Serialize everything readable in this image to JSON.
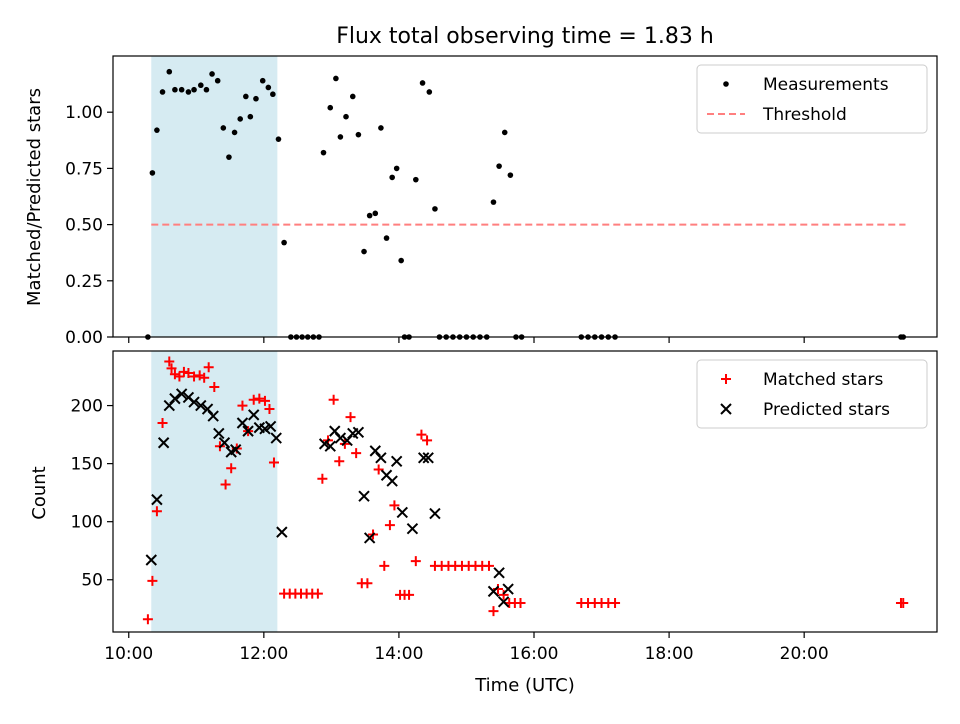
{
  "chart_data": [
    {
      "type": "scatter",
      "title": "Flux total observing time = 1.83 h",
      "xlabel": "",
      "ylabel": "Matched/Predicted stars",
      "xlim": [
        "09:46",
        "21:58"
      ],
      "ylim": [
        0,
        1.25
      ],
      "yticks": [
        "0.00",
        "0.25",
        "0.50",
        "0.75",
        "1.00"
      ],
      "legend_position": "top-right",
      "shaded_interval": [
        "10:20",
        "12:12"
      ],
      "shade_color": "#add8e6",
      "series": [
        {
          "name": "Measurements",
          "marker": "dot",
          "color": "#000000",
          "points": [
            [
              "10:17",
              0
            ],
            [
              "10:21",
              0.73
            ],
            [
              "10:25",
              0.92
            ],
            [
              "10:30",
              1.09
            ],
            [
              "10:36",
              1.18
            ],
            [
              "10:41",
              1.1
            ],
            [
              "10:47",
              1.1
            ],
            [
              "10:53",
              1.09
            ],
            [
              "10:58",
              1.1
            ],
            [
              "11:04",
              1.12
            ],
            [
              "11:09",
              1.1
            ],
            [
              "11:14",
              1.17
            ],
            [
              "11:19",
              1.14
            ],
            [
              "11:24",
              0.93
            ],
            [
              "11:29",
              0.8
            ],
            [
              "11:34",
              0.91
            ],
            [
              "11:39",
              0.97
            ],
            [
              "11:44",
              1.07
            ],
            [
              "11:48",
              0.98
            ],
            [
              "11:53",
              1.06
            ],
            [
              "11:59",
              1.14
            ],
            [
              "12:04",
              1.11
            ],
            [
              "12:08",
              1.08
            ],
            [
              "12:13",
              0.88
            ],
            [
              "12:18",
              0.42
            ],
            [
              "12:24",
              0
            ],
            [
              "12:29",
              0
            ],
            [
              "12:34",
              0
            ],
            [
              "12:39",
              0
            ],
            [
              "12:44",
              0
            ],
            [
              "12:49",
              0
            ],
            [
              "12:53",
              0.82
            ],
            [
              "12:59",
              1.02
            ],
            [
              "13:04",
              1.15
            ],
            [
              "13:08",
              0.89
            ],
            [
              "13:13",
              0.98
            ],
            [
              "13:19",
              1.07
            ],
            [
              "13:24",
              0.9
            ],
            [
              "13:29",
              0.38
            ],
            [
              "13:34",
              0.54
            ],
            [
              "13:39",
              0.55
            ],
            [
              "13:44",
              0.93
            ],
            [
              "13:49",
              0.44
            ],
            [
              "13:54",
              0.71
            ],
            [
              "13:58",
              0.75
            ],
            [
              "14:02",
              0.34
            ],
            [
              "14:05",
              0
            ],
            [
              "14:09",
              0
            ],
            [
              "14:15",
              0.7
            ],
            [
              "14:21",
              1.13
            ],
            [
              "14:27",
              1.09
            ],
            [
              "14:32",
              0.57
            ],
            [
              "14:36",
              0
            ],
            [
              "14:42",
              0
            ],
            [
              "14:48",
              0
            ],
            [
              "14:54",
              0
            ],
            [
              "15:00",
              0
            ],
            [
              "15:06",
              0
            ],
            [
              "15:12",
              0
            ],
            [
              "15:18",
              0
            ],
            [
              "15:24",
              0.6
            ],
            [
              "15:29",
              0.76
            ],
            [
              "15:34",
              0.91
            ],
            [
              "15:39",
              0.72
            ],
            [
              "15:44",
              0
            ],
            [
              "15:49",
              0
            ],
            [
              "16:42",
              0
            ],
            [
              "16:48",
              0
            ],
            [
              "16:54",
              0
            ],
            [
              "17:00",
              0
            ],
            [
              "17:06",
              0
            ],
            [
              "17:12",
              0
            ],
            [
              "21:26",
              0
            ],
            [
              "21:28",
              0
            ]
          ]
        },
        {
          "name": "Threshold",
          "style": "dashed",
          "color": "#ff7f7f",
          "points": [
            [
              "10:20",
              0.5
            ],
            [
              "21:30",
              0.5
            ]
          ]
        }
      ]
    },
    {
      "type": "scatter",
      "title": "",
      "xlabel": "Time (UTC)",
      "ylabel": "Count",
      "xlim": [
        "09:46",
        "21:58"
      ],
      "ylim": [
        5,
        247
      ],
      "yticks": [
        "50",
        "100",
        "150",
        "200"
      ],
      "xticks": [
        "10:00",
        "12:00",
        "14:00",
        "16:00",
        "18:00",
        "20:00"
      ],
      "legend_position": "top-right",
      "shaded_interval": [
        "10:20",
        "12:12"
      ],
      "shade_color": "#add8e6",
      "series": [
        {
          "name": "Matched stars",
          "marker": "plus",
          "color": "#ff0000",
          "points": [
            [
              "10:17",
              16
            ],
            [
              "10:21",
              49
            ],
            [
              "10:25",
              109
            ],
            [
              "10:30",
              185
            ],
            [
              "10:36",
              238
            ],
            [
              "10:38",
              232
            ],
            [
              "10:41",
              227
            ],
            [
              "10:45",
              225
            ],
            [
              "10:49",
              229
            ],
            [
              "10:53",
              228
            ],
            [
              "10:58",
              225
            ],
            [
              "11:03",
              226
            ],
            [
              "11:07",
              224
            ],
            [
              "11:11",
              233
            ],
            [
              "11:16",
              216
            ],
            [
              "11:21",
              165
            ],
            [
              "11:26",
              132
            ],
            [
              "11:31",
              146
            ],
            [
              "11:36",
              163
            ],
            [
              "11:41",
              200
            ],
            [
              "11:46",
              178
            ],
            [
              "11:51",
              205
            ],
            [
              "11:56",
              206
            ],
            [
              "12:01",
              204
            ],
            [
              "12:05",
              197
            ],
            [
              "12:09",
              151
            ],
            [
              "12:18",
              38
            ],
            [
              "12:23",
              38
            ],
            [
              "12:28",
              38
            ],
            [
              "12:33",
              38
            ],
            [
              "12:38",
              38
            ],
            [
              "12:43",
              38
            ],
            [
              "12:48",
              38
            ],
            [
              "12:52",
              137
            ],
            [
              "12:57",
              170
            ],
            [
              "13:02",
              205
            ],
            [
              "13:07",
              152
            ],
            [
              "13:12",
              167
            ],
            [
              "13:17",
              190
            ],
            [
              "13:22",
              159
            ],
            [
              "13:27",
              47
            ],
            [
              "13:32",
              47
            ],
            [
              "13:37",
              89
            ],
            [
              "13:42",
              145
            ],
            [
              "13:47",
              62
            ],
            [
              "13:52",
              97
            ],
            [
              "13:56",
              114
            ],
            [
              "14:01",
              37
            ],
            [
              "14:05",
              37
            ],
            [
              "14:09",
              37
            ],
            [
              "14:15",
              66
            ],
            [
              "14:20",
              175
            ],
            [
              "14:25",
              170
            ],
            [
              "14:32",
              62
            ],
            [
              "14:38",
              62
            ],
            [
              "14:44",
              62
            ],
            [
              "14:50",
              62
            ],
            [
              "14:56",
              62
            ],
            [
              "15:02",
              62
            ],
            [
              "15:08",
              62
            ],
            [
              "15:14",
              62
            ],
            [
              "15:20",
              62
            ],
            [
              "15:24",
              23
            ],
            [
              "15:28",
              42
            ],
            [
              "15:33",
              37
            ],
            [
              "15:38",
              30
            ],
            [
              "15:43",
              30
            ],
            [
              "15:48",
              30
            ],
            [
              "16:42",
              30
            ],
            [
              "16:48",
              30
            ],
            [
              "16:54",
              30
            ],
            [
              "17:00",
              30
            ],
            [
              "17:06",
              30
            ],
            [
              "17:12",
              30
            ],
            [
              "21:26",
              30
            ],
            [
              "21:28",
              30
            ]
          ]
        },
        {
          "name": "Predicted stars",
          "marker": "x",
          "color": "#000000",
          "points": [
            [
              "10:20",
              67
            ],
            [
              "10:25",
              119
            ],
            [
              "10:31",
              168
            ],
            [
              "10:36",
              200
            ],
            [
              "10:41",
              206
            ],
            [
              "10:47",
              210
            ],
            [
              "10:53",
              207
            ],
            [
              "10:58",
              203
            ],
            [
              "11:04",
              200
            ],
            [
              "11:10",
              197
            ],
            [
              "11:15",
              191
            ],
            [
              "11:20",
              176
            ],
            [
              "11:25",
              168
            ],
            [
              "11:31",
              160
            ],
            [
              "11:35",
              162
            ],
            [
              "11:41",
              185
            ],
            [
              "11:46",
              178
            ],
            [
              "11:51",
              192
            ],
            [
              "11:56",
              181
            ],
            [
              "12:01",
              180
            ],
            [
              "12:06",
              182
            ],
            [
              "12:11",
              172
            ],
            [
              "12:16",
              91
            ],
            [
              "12:54",
              167
            ],
            [
              "12:59",
              165
            ],
            [
              "13:03",
              178
            ],
            [
              "13:08",
              172
            ],
            [
              "13:14",
              170
            ],
            [
              "13:19",
              176
            ],
            [
              "13:24",
              177
            ],
            [
              "13:29",
              122
            ],
            [
              "13:34",
              86
            ],
            [
              "13:39",
              161
            ],
            [
              "13:44",
              155
            ],
            [
              "13:49",
              140
            ],
            [
              "13:54",
              135
            ],
            [
              "13:58",
              152
            ],
            [
              "14:03",
              108
            ],
            [
              "14:12",
              94
            ],
            [
              "14:22",
              155
            ],
            [
              "14:26",
              155
            ],
            [
              "14:32",
              107
            ],
            [
              "15:24",
              40
            ],
            [
              "15:29",
              56
            ],
            [
              "15:33",
              31
            ],
            [
              "15:37",
              42
            ]
          ]
        }
      ]
    }
  ]
}
